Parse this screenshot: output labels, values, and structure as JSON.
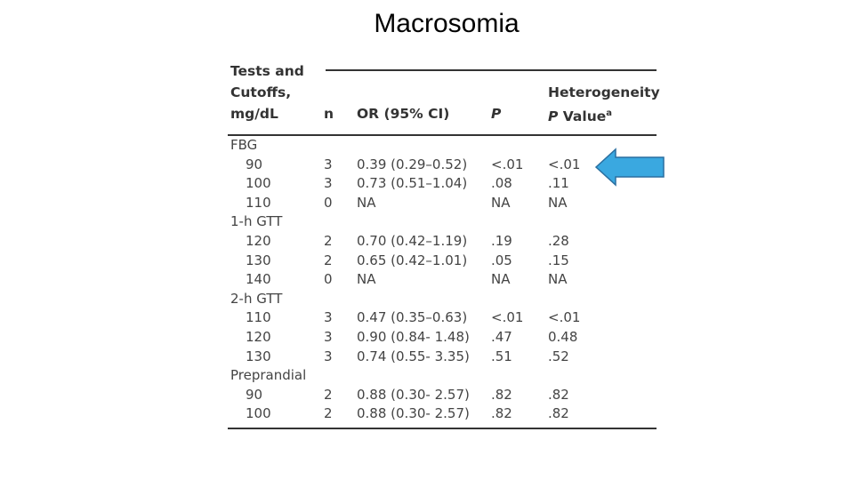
{
  "title": "Macrosomia",
  "table": {
    "headers": {
      "tests": [
        "Tests and",
        "Cutoffs,",
        "mg/dL"
      ],
      "n": "n",
      "or": "OR (95% CI)",
      "p": "P",
      "het_line1": "Heterogeneity",
      "het_p": "P",
      "het_value": "Value",
      "het_sup": "a"
    },
    "rows": [
      {
        "label": "FBG",
        "group": true
      },
      {
        "label": "90",
        "n": "3",
        "or": "0.39 (0.29–0.52)",
        "p": "<.01",
        "het": "<.01"
      },
      {
        "label": "100",
        "n": "3",
        "or": "0.73 (0.51–1.04)",
        "p": ".08",
        "het": ".11"
      },
      {
        "label": "110",
        "n": "0",
        "or": "NA",
        "p": "NA",
        "het": "NA"
      },
      {
        "label": "1-h GTT",
        "group": true
      },
      {
        "label": "120",
        "n": "2",
        "or": "0.70 (0.42–1.19)",
        "p": ".19",
        "het": ".28"
      },
      {
        "label": "130",
        "n": "2",
        "or": "0.65 (0.42–1.01)",
        "p": ".05",
        "het": ".15"
      },
      {
        "label": "140",
        "n": "0",
        "or": "NA",
        "p": "NA",
        "het": "NA"
      },
      {
        "label": "2-h GTT",
        "group": true
      },
      {
        "label": "110",
        "n": "3",
        "or": "0.47 (0.35–0.63)",
        "p": "<.01",
        "het": "<.01"
      },
      {
        "label": "120",
        "n": "3",
        "or": "0.90 (0.84- 1.48)",
        "p": ".47",
        "het": "0.48"
      },
      {
        "label": "130",
        "n": "3",
        "or": "0.74 (0.55- 3.35)",
        "p": ".51",
        "het": ".52"
      },
      {
        "label": "Preprandial",
        "group": true
      },
      {
        "label": "90",
        "n": "2",
        "or": "0.88 (0.30- 2.57)",
        "p": ".82",
        "het": ".82"
      },
      {
        "label": "100",
        "n": "2",
        "or": "0.88 (0.30- 2.57)",
        "p": ".82",
        "het": ".82"
      }
    ]
  },
  "arrow": {
    "fill": "#3aa8e0",
    "stroke": "#2a6fa0",
    "icon": "arrow-left-icon"
  }
}
